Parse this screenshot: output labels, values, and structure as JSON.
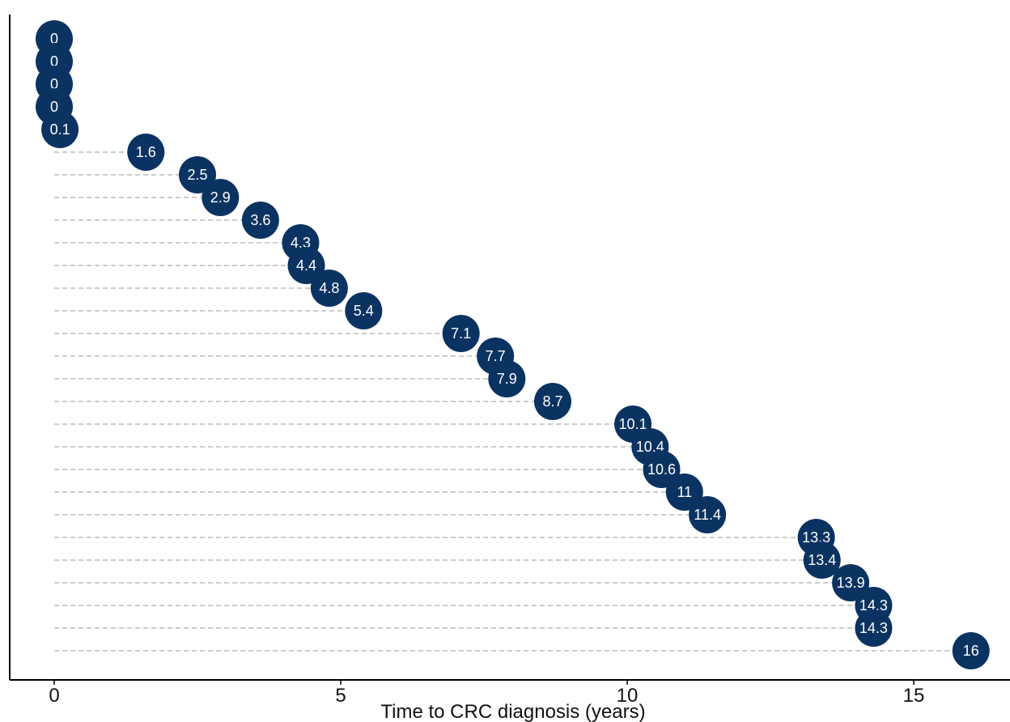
{
  "chart_data": {
    "type": "scatter",
    "title": "",
    "xlabel": "Time to CRC diagnosis (years)",
    "ylabel": "",
    "xlim": [
      0,
      16
    ],
    "xticks": [
      0,
      5,
      10,
      15
    ],
    "grid": "dashed horizontal guide lines from x=0 to each point",
    "point_color": "#0b3361",
    "label_color": "#ffffff",
    "points": [
      {
        "x": 0,
        "label": "0"
      },
      {
        "x": 0,
        "label": "0"
      },
      {
        "x": 0,
        "label": "0"
      },
      {
        "x": 0,
        "label": "0"
      },
      {
        "x": 0.1,
        "label": "0.1"
      },
      {
        "x": 1.6,
        "label": "1.6"
      },
      {
        "x": 2.5,
        "label": "2.5"
      },
      {
        "x": 2.9,
        "label": "2.9"
      },
      {
        "x": 3.6,
        "label": "3.6"
      },
      {
        "x": 4.3,
        "label": "4.3"
      },
      {
        "x": 4.4,
        "label": "4.4"
      },
      {
        "x": 4.8,
        "label": "4.8"
      },
      {
        "x": 5.4,
        "label": "5.4"
      },
      {
        "x": 7.1,
        "label": "7.1"
      },
      {
        "x": 7.7,
        "label": "7.7"
      },
      {
        "x": 7.9,
        "label": "7.9"
      },
      {
        "x": 8.7,
        "label": "8.7"
      },
      {
        "x": 10.1,
        "label": "10.1"
      },
      {
        "x": 10.4,
        "label": "10.4"
      },
      {
        "x": 10.6,
        "label": "10.6"
      },
      {
        "x": 11,
        "label": "11"
      },
      {
        "x": 11.4,
        "label": "11.4"
      },
      {
        "x": 13.3,
        "label": "13.3"
      },
      {
        "x": 13.4,
        "label": "13.4"
      },
      {
        "x": 13.9,
        "label": "13.9"
      },
      {
        "x": 14.3,
        "label": "14.3"
      },
      {
        "x": 14.3,
        "label": "14.3"
      },
      {
        "x": 16,
        "label": "16"
      }
    ]
  }
}
